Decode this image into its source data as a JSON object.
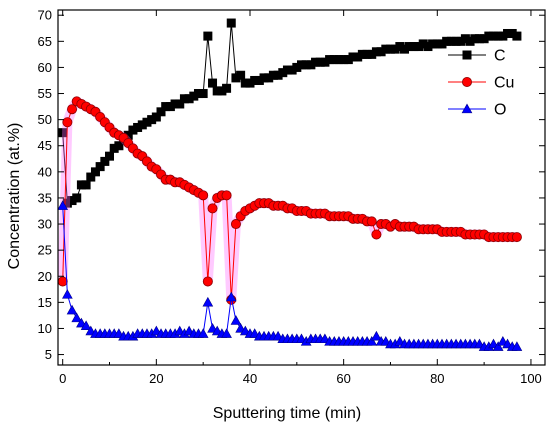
{
  "chart_data": {
    "type": "scatter",
    "xlabel": "Sputtering time (min)",
    "ylabel": "Concentration (at.%)",
    "xlim": [
      -1,
      103
    ],
    "ylim": [
      3,
      71
    ],
    "xticks": [
      0,
      20,
      40,
      60,
      80,
      100
    ],
    "yticks": [
      5,
      10,
      15,
      20,
      25,
      30,
      35,
      40,
      45,
      50,
      55,
      60,
      65,
      70
    ],
    "grid": false,
    "legend_position": "top-right",
    "series": [
      {
        "name": "C",
        "color": "#000000",
        "marker": "square",
        "points": [
          [
            0,
            47.5
          ],
          [
            1,
            34
          ],
          [
            2,
            34.5
          ],
          [
            3,
            35
          ],
          [
            4,
            37.5
          ],
          [
            5,
            37.5
          ],
          [
            6,
            39
          ],
          [
            7,
            40
          ],
          [
            8,
            41
          ],
          [
            9,
            42
          ],
          [
            10,
            43
          ],
          [
            11,
            44.5
          ],
          [
            12,
            45
          ],
          [
            13,
            46
          ],
          [
            14,
            47
          ],
          [
            15,
            48
          ],
          [
            16,
            48.5
          ],
          [
            17,
            49
          ],
          [
            18,
            49.5
          ],
          [
            19,
            50
          ],
          [
            20,
            50.5
          ],
          [
            21,
            51.5
          ],
          [
            22,
            52.5
          ],
          [
            23,
            52.5
          ],
          [
            24,
            53
          ],
          [
            25,
            53
          ],
          [
            26,
            54
          ],
          [
            27,
            54
          ],
          [
            28,
            54.5
          ],
          [
            29,
            55
          ],
          [
            30,
            55
          ],
          [
            31,
            66
          ],
          [
            32,
            57
          ],
          [
            33,
            55.5
          ],
          [
            34,
            55.5
          ],
          [
            35,
            56
          ],
          [
            36,
            68.5
          ],
          [
            37,
            58
          ],
          [
            38,
            58.5
          ],
          [
            39,
            57
          ],
          [
            40,
            57
          ],
          [
            41,
            57.5
          ],
          [
            42,
            57.5
          ],
          [
            43,
            58
          ],
          [
            44,
            58
          ],
          [
            45,
            58.5
          ],
          [
            46,
            58.5
          ],
          [
            47,
            59
          ],
          [
            48,
            59.5
          ],
          [
            49,
            59.5
          ],
          [
            50,
            60
          ],
          [
            51,
            60.5
          ],
          [
            52,
            60.5
          ],
          [
            53,
            60.5
          ],
          [
            54,
            61
          ],
          [
            55,
            61
          ],
          [
            56,
            61
          ],
          [
            57,
            61.5
          ],
          [
            58,
            61.5
          ],
          [
            59,
            61.5
          ],
          [
            60,
            61.5
          ],
          [
            61,
            61.5
          ],
          [
            62,
            62
          ],
          [
            63,
            62
          ],
          [
            64,
            62.5
          ],
          [
            65,
            62.5
          ],
          [
            66,
            62.5
          ],
          [
            67,
            63
          ],
          [
            68,
            63
          ],
          [
            69,
            63.5
          ],
          [
            70,
            63.5
          ],
          [
            71,
            63.5
          ],
          [
            72,
            64
          ],
          [
            73,
            63.5
          ],
          [
            74,
            64
          ],
          [
            75,
            64
          ],
          [
            76,
            64
          ],
          [
            77,
            64.5
          ],
          [
            78,
            64
          ],
          [
            79,
            64.5
          ],
          [
            80,
            64.5
          ],
          [
            81,
            64.5
          ],
          [
            82,
            65
          ],
          [
            83,
            65
          ],
          [
            84,
            65
          ],
          [
            85,
            65
          ],
          [
            86,
            65.5
          ],
          [
            87,
            65
          ],
          [
            88,
            65.5
          ],
          [
            89,
            65.5
          ],
          [
            90,
            65.5
          ],
          [
            91,
            66
          ],
          [
            92,
            66
          ],
          [
            93,
            66
          ],
          [
            94,
            66
          ],
          [
            95,
            66.5
          ],
          [
            96,
            66.5
          ],
          [
            97,
            66
          ]
        ]
      },
      {
        "name": "Cu",
        "color": "#ff0000",
        "marker": "circle",
        "points": [
          [
            0,
            19
          ],
          [
            1,
            49.5
          ],
          [
            2,
            52
          ],
          [
            3,
            53.5
          ],
          [
            4,
            53
          ],
          [
            5,
            52.5
          ],
          [
            6,
            52
          ],
          [
            7,
            51.5
          ],
          [
            8,
            50.5
          ],
          [
            9,
            49.5
          ],
          [
            10,
            48.5
          ],
          [
            11,
            47.5
          ],
          [
            12,
            47
          ],
          [
            13,
            46.5
          ],
          [
            14,
            45.5
          ],
          [
            15,
            44.5
          ],
          [
            16,
            43.5
          ],
          [
            17,
            43
          ],
          [
            18,
            42
          ],
          [
            19,
            41
          ],
          [
            20,
            40.5
          ],
          [
            21,
            39.5
          ],
          [
            22,
            38.5
          ],
          [
            23,
            38.5
          ],
          [
            24,
            38
          ],
          [
            25,
            38
          ],
          [
            26,
            37.5
          ],
          [
            27,
            37
          ],
          [
            28,
            36.5
          ],
          [
            29,
            36
          ],
          [
            30,
            35.5
          ],
          [
            31,
            19
          ],
          [
            32,
            33
          ],
          [
            33,
            35
          ],
          [
            34,
            35.5
          ],
          [
            35,
            35.5
          ],
          [
            36,
            15.5
          ],
          [
            37,
            30
          ],
          [
            38,
            31.5
          ],
          [
            39,
            32.5
          ],
          [
            40,
            33
          ],
          [
            41,
            33.5
          ],
          [
            42,
            34
          ],
          [
            43,
            34
          ],
          [
            44,
            34
          ],
          [
            45,
            33.5
          ],
          [
            46,
            33.5
          ],
          [
            47,
            33.5
          ],
          [
            48,
            33
          ],
          [
            49,
            33
          ],
          [
            50,
            32.5
          ],
          [
            51,
            32.5
          ],
          [
            52,
            32.5
          ],
          [
            53,
            32
          ],
          [
            54,
            32
          ],
          [
            55,
            32
          ],
          [
            56,
            32
          ],
          [
            57,
            31.5
          ],
          [
            58,
            31.5
          ],
          [
            59,
            31.5
          ],
          [
            60,
            31.5
          ],
          [
            61,
            31.5
          ],
          [
            62,
            31
          ],
          [
            63,
            31
          ],
          [
            64,
            31
          ],
          [
            65,
            30.5
          ],
          [
            66,
            30.5
          ],
          [
            67,
            28
          ],
          [
            68,
            30
          ],
          [
            69,
            30
          ],
          [
            70,
            29.5
          ],
          [
            71,
            30
          ],
          [
            72,
            29.5
          ],
          [
            73,
            29.5
          ],
          [
            74,
            29.5
          ],
          [
            75,
            29.5
          ],
          [
            76,
            29
          ],
          [
            77,
            29
          ],
          [
            78,
            29
          ],
          [
            79,
            29
          ],
          [
            80,
            29
          ],
          [
            81,
            28.5
          ],
          [
            82,
            28.5
          ],
          [
            83,
            28.5
          ],
          [
            84,
            28.5
          ],
          [
            85,
            28.5
          ],
          [
            86,
            28
          ],
          [
            87,
            28
          ],
          [
            88,
            28
          ],
          [
            89,
            28
          ],
          [
            90,
            28
          ],
          [
            91,
            27.5
          ],
          [
            92,
            27.5
          ],
          [
            93,
            27.5
          ],
          [
            94,
            27.5
          ],
          [
            95,
            27.5
          ],
          [
            96,
            27.5
          ],
          [
            97,
            27.5
          ]
        ]
      },
      {
        "name": "O",
        "color": "#0000ff",
        "marker": "triangle",
        "points": [
          [
            0,
            33.5
          ],
          [
            1,
            16.5
          ],
          [
            2,
            13.5
          ],
          [
            3,
            12
          ],
          [
            4,
            11
          ],
          [
            5,
            10.5
          ],
          [
            6,
            9.5
          ],
          [
            7,
            9
          ],
          [
            8,
            9
          ],
          [
            9,
            9
          ],
          [
            10,
            9
          ],
          [
            11,
            9
          ],
          [
            12,
            9
          ],
          [
            13,
            8.5
          ],
          [
            14,
            8.5
          ],
          [
            15,
            8.5
          ],
          [
            16,
            9
          ],
          [
            17,
            9
          ],
          [
            18,
            9
          ],
          [
            19,
            9
          ],
          [
            20,
            9.5
          ],
          [
            21,
            9
          ],
          [
            22,
            9
          ],
          [
            23,
            9
          ],
          [
            24,
            9
          ],
          [
            25,
            9.5
          ],
          [
            26,
            9
          ],
          [
            27,
            9.5
          ],
          [
            28,
            9
          ],
          [
            29,
            9
          ],
          [
            30,
            9
          ],
          [
            31,
            15
          ],
          [
            32,
            10
          ],
          [
            33,
            9.5
          ],
          [
            34,
            9
          ],
          [
            35,
            9
          ],
          [
            36,
            16
          ],
          [
            37,
            11.5
          ],
          [
            38,
            10
          ],
          [
            39,
            9.5
          ],
          [
            40,
            9
          ],
          [
            41,
            9
          ],
          [
            42,
            8.5
          ],
          [
            43,
            8.5
          ],
          [
            44,
            8.5
          ],
          [
            45,
            8.5
          ],
          [
            46,
            8.5
          ],
          [
            47,
            8
          ],
          [
            48,
            8
          ],
          [
            49,
            8
          ],
          [
            50,
            8
          ],
          [
            51,
            8
          ],
          [
            52,
            7.5
          ],
          [
            53,
            8
          ],
          [
            54,
            8
          ],
          [
            55,
            8
          ],
          [
            56,
            8
          ],
          [
            57,
            7.5
          ],
          [
            58,
            7.5
          ],
          [
            59,
            7.5
          ],
          [
            60,
            7.5
          ],
          [
            61,
            7.5
          ],
          [
            62,
            7.5
          ],
          [
            63,
            7.5
          ],
          [
            64,
            7.5
          ],
          [
            65,
            7.5
          ],
          [
            66,
            7.5
          ],
          [
            67,
            8.5
          ],
          [
            68,
            7.5
          ],
          [
            69,
            7.5
          ],
          [
            70,
            7
          ],
          [
            71,
            7
          ],
          [
            72,
            7.5
          ],
          [
            73,
            7
          ],
          [
            74,
            7
          ],
          [
            75,
            7
          ],
          [
            76,
            7
          ],
          [
            77,
            7
          ],
          [
            78,
            7
          ],
          [
            79,
            7
          ],
          [
            80,
            7
          ],
          [
            81,
            7
          ],
          [
            82,
            7
          ],
          [
            83,
            7
          ],
          [
            84,
            7
          ],
          [
            85,
            7
          ],
          [
            86,
            7
          ],
          [
            87,
            7
          ],
          [
            88,
            7
          ],
          [
            89,
            7
          ],
          [
            90,
            6.5
          ],
          [
            91,
            6.5
          ],
          [
            92,
            7
          ],
          [
            93,
            6.5
          ],
          [
            94,
            7.5
          ],
          [
            95,
            7
          ],
          [
            96,
            6.5
          ],
          [
            97,
            6.5
          ]
        ]
      }
    ]
  }
}
